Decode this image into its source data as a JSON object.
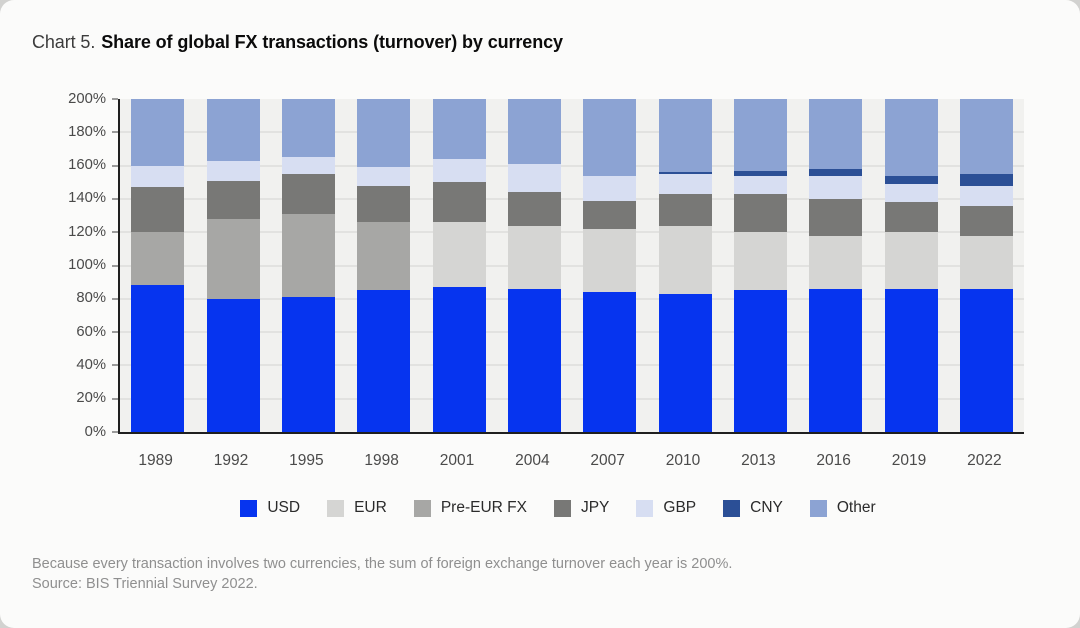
{
  "title": {
    "prefix": "Chart 5.",
    "main": "Share of global FX transactions (turnover) by currency"
  },
  "footnotes": {
    "note": "Because every transaction involves two currencies, the sum of foreign exchange turnover each year is 200%.",
    "source": "Source: BIS Triennial Survey 2022."
  },
  "palette": {
    "page_bg": "#d2d2d0",
    "card_bg": "#fbfbfa",
    "plot_bg": "#f1f1ef",
    "gridline": "#e2e2e0",
    "axis_line": "#1f1f1f",
    "tick": "#9b9b9b",
    "axis_text": "#4a4a4a",
    "legend_text": "#2b2b2b",
    "footnote_text": "#8f8f8f",
    "title_prefix_text": "#3c3c3c",
    "title_text": "#0b0b0b"
  },
  "chart_data": {
    "type": "bar",
    "stacked": true,
    "title": "Share of global FX transactions (turnover) by currency",
    "unit": "%",
    "ylim": [
      0,
      200
    ],
    "grid": true,
    "legend_position": "bottom",
    "y_ticks": [
      {
        "value": 0,
        "label": "0%"
      },
      {
        "value": 20,
        "label": "20%"
      },
      {
        "value": 40,
        "label": "40%"
      },
      {
        "value": 60,
        "label": "60%"
      },
      {
        "value": 80,
        "label": "80%"
      },
      {
        "value": 100,
        "label": "100%"
      },
      {
        "value": 120,
        "label": "120%"
      },
      {
        "value": 140,
        "label": "140%"
      },
      {
        "value": 160,
        "label": "160%"
      },
      {
        "value": 180,
        "label": "180%"
      },
      {
        "value": 200,
        "label": "200%"
      }
    ],
    "categories": [
      "1989",
      "1992",
      "1995",
      "1998",
      "2001",
      "2004",
      "2007",
      "2010",
      "2013",
      "2016",
      "2019",
      "2022"
    ],
    "series": [
      {
        "key": "usd",
        "name": "USD",
        "color": "#0634ef",
        "values": [
          88,
          80,
          81,
          85,
          87,
          86,
          84,
          83,
          85,
          86,
          86,
          86
        ]
      },
      {
        "key": "eur",
        "name": "EUR",
        "color": "#d5d5d3",
        "values": [
          0,
          0,
          0,
          0,
          39,
          38,
          38,
          41,
          35,
          32,
          34,
          32
        ]
      },
      {
        "key": "pre-eur-fx",
        "name": "Pre-EUR FX",
        "color": "#a7a7a5",
        "values": [
          32,
          48,
          50,
          41,
          0,
          0,
          0,
          0,
          0,
          0,
          0,
          0
        ]
      },
      {
        "key": "jpy",
        "name": "JPY",
        "color": "#787876",
        "values": [
          27,
          23,
          24,
          22,
          24,
          20,
          17,
          19,
          23,
          22,
          18,
          18
        ]
      },
      {
        "key": "gbp",
        "name": "GBP",
        "color": "#d7def2",
        "values": [
          13,
          12,
          10,
          11,
          14,
          17,
          15,
          12,
          11,
          14,
          11,
          12
        ]
      },
      {
        "key": "cny",
        "name": "CNY",
        "color": "#2b4f96",
        "values": [
          0,
          0,
          0,
          0,
          0,
          0,
          0,
          1,
          3,
          4,
          5,
          7
        ]
      },
      {
        "key": "other",
        "name": "Other",
        "color": "#8ca3d3",
        "values": [
          40,
          37,
          35,
          41,
          36,
          39,
          46,
          44,
          43,
          42,
          46,
          45
        ]
      }
    ]
  }
}
